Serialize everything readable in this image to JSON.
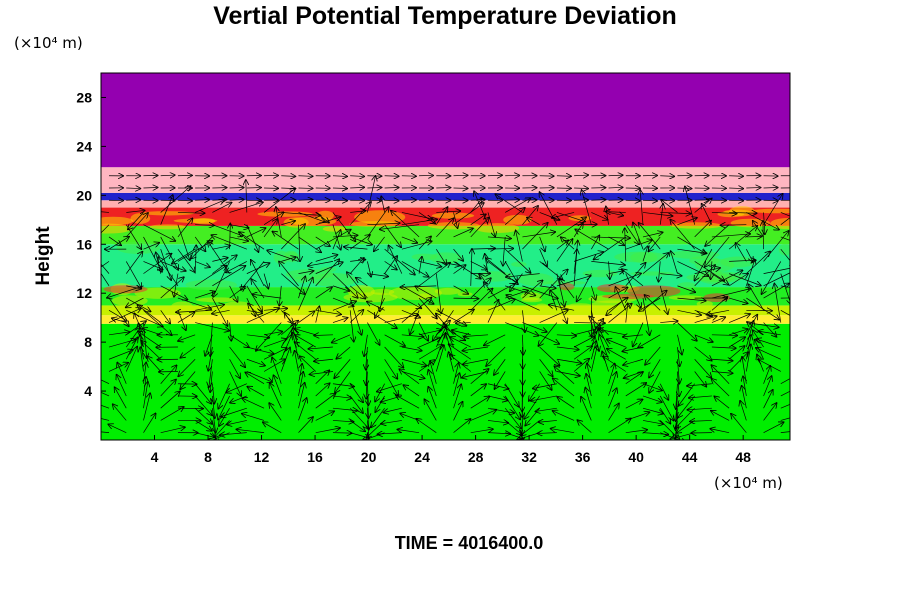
{
  "chart_data": {
    "type": "heatmap",
    "title": "Vertial Potential Temperature Deviation",
    "ylabel": "Height",
    "xunit": "(×10⁴ m)",
    "yunit": "(×10⁴ m)",
    "xlim": [
      0,
      51.5
    ],
    "ylim": [
      0,
      30
    ],
    "xticks": [
      4,
      8,
      12,
      16,
      20,
      24,
      28,
      32,
      36,
      40,
      44,
      48
    ],
    "xtick_labels": [
      "4",
      "8",
      "12",
      "16",
      "20",
      "24",
      "28",
      "32",
      "36",
      "40",
      "44",
      "48"
    ],
    "yticks": [
      4,
      8,
      12,
      16,
      20,
      24,
      28
    ],
    "ytick_labels": [
      "4",
      "8",
      "12",
      "16",
      "20",
      "24",
      "28"
    ],
    "grid": false,
    "layers": [
      {
        "y0": 0,
        "y1": 9.5,
        "color": "#00ee00"
      },
      {
        "y0": 9.5,
        "y1": 10.2,
        "color": "#ffee33"
      },
      {
        "y0": 10.2,
        "y1": 11.0,
        "color": "#c8f000"
      },
      {
        "y0": 11.0,
        "y1": 12.5,
        "color": "#22ee22"
      },
      {
        "y0": 12.5,
        "y1": 16.0,
        "color": "#22ee88"
      },
      {
        "y0": 16.0,
        "y1": 17.5,
        "color": "#44ee22"
      },
      {
        "y0": 17.5,
        "y1": 19.0,
        "color": "#ee2222"
      },
      {
        "y0": 19.0,
        "y1": 19.6,
        "color": "#ffb0b0"
      },
      {
        "y0": 19.6,
        "y1": 20.2,
        "color": "#2222cc"
      },
      {
        "y0": 20.2,
        "y1": 22.3,
        "color": "#ffb6c1"
      },
      {
        "y0": 22.3,
        "y1": 30.0,
        "color": "#9400b0"
      }
    ],
    "colors": {
      "stratosphere": "#9400b0",
      "upper_band": "#ffb6c1",
      "tropopause_line": "#2222cc",
      "warm_band": "#ee2222",
      "mid_layer": "#22ee88",
      "lower_layer": "#00ee00",
      "transition": "#ffee33",
      "vectors": "#000000"
    }
  },
  "time_label": "TIME = 4016400.0"
}
